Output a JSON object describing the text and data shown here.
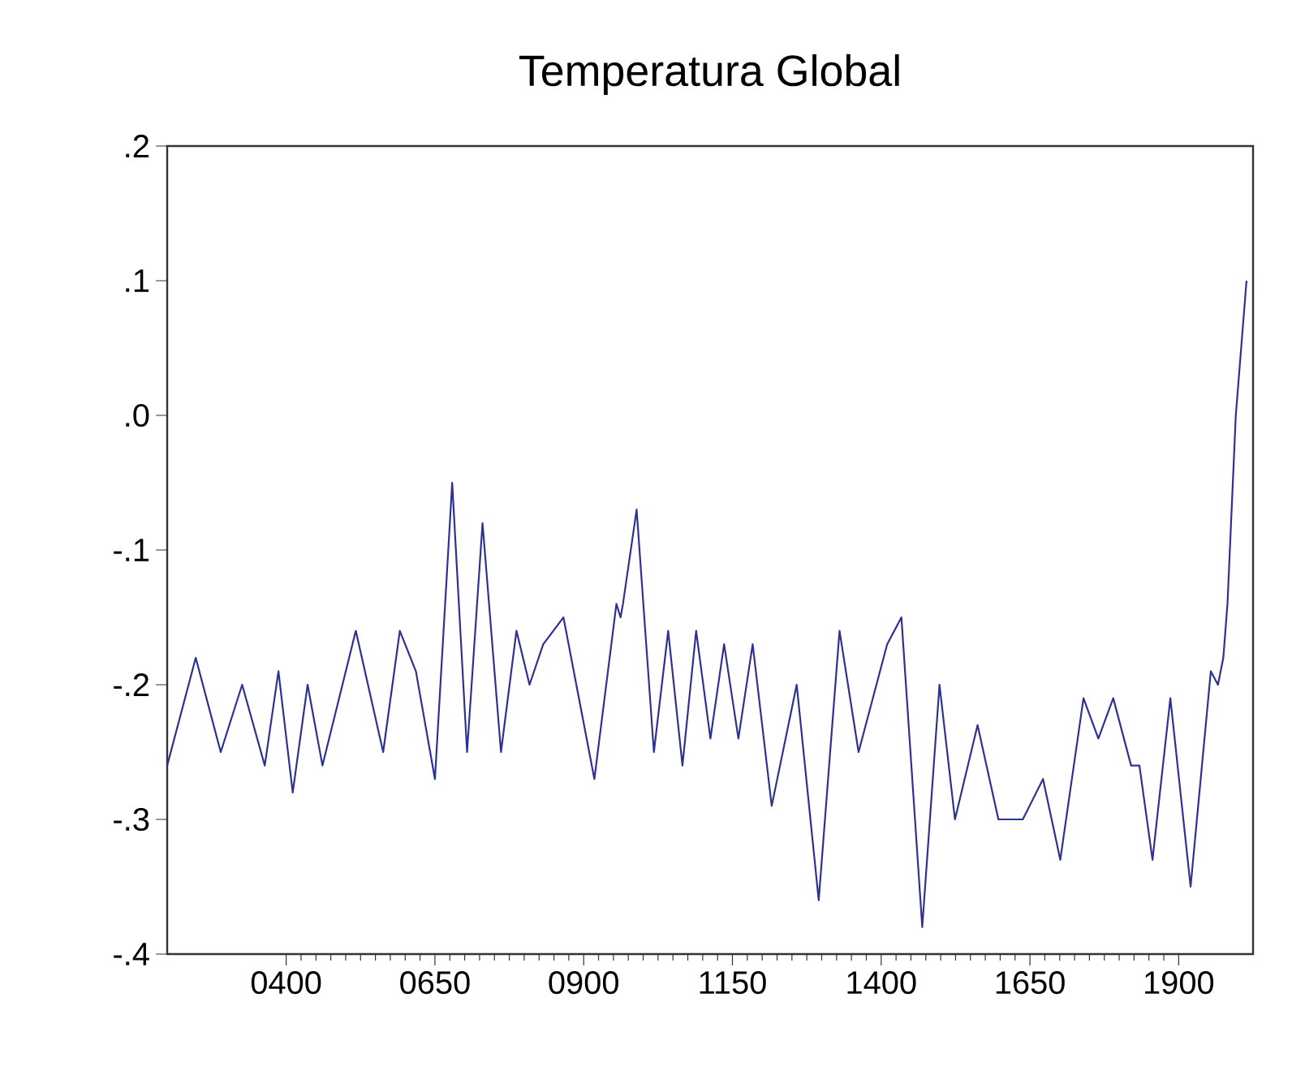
{
  "chart_data": {
    "type": "line",
    "title": "Temperatura Global",
    "x": [
      200,
      248,
      290,
      326,
      364,
      387,
      411,
      436,
      461,
      517,
      563,
      591,
      618,
      650,
      679,
      704,
      730,
      761,
      787,
      809,
      832,
      866,
      918,
      955,
      962,
      966,
      989,
      1018,
      1042,
      1066,
      1089,
      1113,
      1136,
      1160,
      1184,
      1216,
      1258,
      1295,
      1330,
      1362,
      1410,
      1434,
      1469,
      1498,
      1524,
      1562,
      1597,
      1638,
      1672,
      1701,
      1740,
      1765,
      1790,
      1820,
      1834,
      1856,
      1886,
      1920,
      1954,
      1966,
      1975,
      1982,
      1996,
      2014
    ],
    "values": [
      -0.26,
      -0.18,
      -0.25,
      -0.2,
      -0.26,
      -0.19,
      -0.28,
      -0.2,
      -0.26,
      -0.16,
      -0.25,
      -0.16,
      -0.19,
      -0.27,
      -0.05,
      -0.25,
      -0.08,
      -0.25,
      -0.16,
      -0.2,
      -0.17,
      -0.15,
      -0.27,
      -0.14,
      -0.15,
      -0.14,
      -0.07,
      -0.25,
      -0.16,
      -0.26,
      -0.16,
      -0.24,
      -0.17,
      -0.24,
      -0.17,
      -0.29,
      -0.2,
      -0.36,
      -0.16,
      -0.25,
      -0.17,
      -0.15,
      -0.38,
      -0.2,
      -0.3,
      -0.23,
      -0.3,
      -0.3,
      -0.27,
      -0.33,
      -0.21,
      -0.24,
      -0.21,
      -0.26,
      -0.26,
      -0.33,
      -0.21,
      -0.35,
      -0.19,
      -0.2,
      -0.18,
      -0.14,
      0.0,
      0.1
    ],
    "color": "#2e3192",
    "line_style": "solid",
    "marker": "none",
    "grid": false,
    "xlim": [
      200,
      2025
    ],
    "ylim": [
      -0.4,
      0.2
    ],
    "xticks": [
      {
        "value": 400,
        "label": "0400"
      },
      {
        "value": 650,
        "label": "0650"
      },
      {
        "value": 900,
        "label": "0900"
      },
      {
        "value": 1150,
        "label": "1150"
      },
      {
        "value": 1400,
        "label": "1400"
      },
      {
        "value": 1650,
        "label": "1650"
      },
      {
        "value": 1900,
        "label": "1900"
      }
    ],
    "yticks": [
      {
        "value": -0.4,
        "label": "-.4"
      },
      {
        "value": -0.3,
        "label": "-.3"
      },
      {
        "value": -0.2,
        "label": "-.2"
      },
      {
        "value": -0.1,
        "label": "-.1"
      },
      {
        "value": 0.0,
        "label": ".0"
      },
      {
        "value": 0.1,
        "label": ".1"
      },
      {
        "value": 0.2,
        "label": ".2"
      }
    ]
  }
}
